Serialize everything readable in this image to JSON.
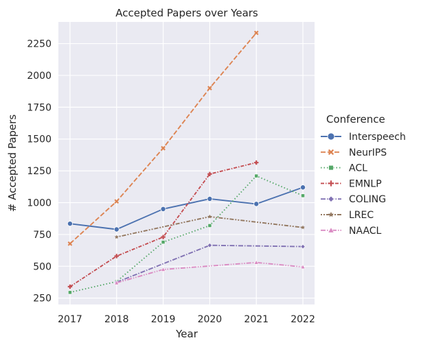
{
  "chart_data": {
    "type": "line",
    "title": "Accepted Papers over Years",
    "xlabel": "Year",
    "ylabel": "# Accepted Papers",
    "x": [
      2017,
      2018,
      2019,
      2020,
      2021,
      2022
    ],
    "xticks": [
      "2017",
      "2018",
      "2019",
      "2020",
      "2021",
      "2022"
    ],
    "yticks": [
      "250",
      "500",
      "750",
      "1000",
      "1250",
      "1500",
      "1750",
      "2000",
      "2250"
    ],
    "ylim": [
      200,
      2420
    ],
    "grid": true,
    "legend_title": "Conference",
    "legend_position": "right",
    "series": [
      {
        "name": "Interspeech",
        "color": "#4c72b0",
        "dash": "",
        "marker": "circle",
        "points": [
          [
            2017,
            835
          ],
          [
            2018,
            790
          ],
          [
            2019,
            950
          ],
          [
            2020,
            1030
          ],
          [
            2021,
            990
          ],
          [
            2022,
            1120
          ]
        ]
      },
      {
        "name": "NeurIPS",
        "color": "#dd8452",
        "dash": "7,3",
        "marker": "x",
        "points": [
          [
            2017,
            678
          ],
          [
            2018,
            1010
          ],
          [
            2019,
            1428
          ],
          [
            2020,
            1900
          ],
          [
            2021,
            2334
          ]
        ]
      },
      {
        "name": "ACL",
        "color": "#55a868",
        "dash": "1.5,3",
        "marker": "square",
        "points": [
          [
            2017,
            295
          ],
          [
            2018,
            380
          ],
          [
            2019,
            690
          ],
          [
            2020,
            820
          ],
          [
            2021,
            1210
          ],
          [
            2022,
            1055
          ]
        ]
      },
      {
        "name": "EMNLP",
        "color": "#c44e52",
        "dash": "5,2,1.5,2",
        "marker": "plus",
        "points": [
          [
            2017,
            340
          ],
          [
            2018,
            580
          ],
          [
            2019,
            730
          ],
          [
            2020,
            1225
          ],
          [
            2021,
            1315
          ]
        ]
      },
      {
        "name": "COLING",
        "color": "#8172b3",
        "dash": "7,2,1.5,2",
        "marker": "diamond",
        "points": [
          [
            2018,
            375
          ],
          [
            2020,
            665
          ],
          [
            2022,
            655
          ]
        ]
      },
      {
        "name": "LREC",
        "color": "#937860",
        "dash": "2,2,2,2,6,2",
        "marker": "star",
        "points": [
          [
            2018,
            730
          ],
          [
            2020,
            890
          ],
          [
            2022,
            805
          ]
        ]
      },
      {
        "name": "NAACL",
        "color": "#da8bc3",
        "dash": "7,2,1.5,2,1.5,2",
        "marker": "triangle",
        "points": [
          [
            2018,
            370
          ],
          [
            2019,
            475
          ],
          [
            2021,
            530
          ],
          [
            2022,
            495
          ]
        ]
      }
    ]
  }
}
